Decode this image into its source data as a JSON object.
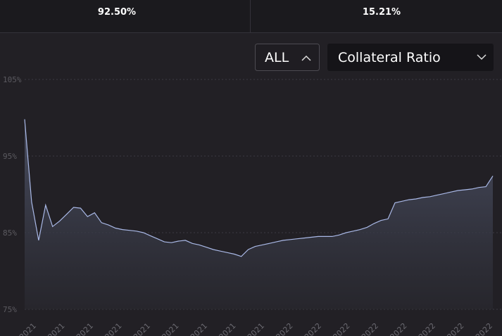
{
  "stats": [
    {
      "value": "92.50%"
    },
    {
      "value": "15.21%"
    }
  ],
  "controls": {
    "range": "ALL",
    "metric": "Collateral Ratio"
  },
  "chart_data": {
    "type": "area",
    "color": "#a9b8e6",
    "values": [
      99.8,
      89,
      84,
      88.6,
      85.8,
      86.5,
      87.4,
      88.3,
      88.2,
      87.1,
      87.6,
      86.3,
      86,
      85.6,
      85.4,
      85.3,
      85.2,
      85,
      84.6,
      84.2,
      83.8,
      83.7,
      83.9,
      84,
      83.6,
      83.4,
      83.1,
      82.8,
      82.6,
      82.4,
      82.2,
      81.9,
      82.8,
      83.2,
      83.4,
      83.6,
      83.8,
      84,
      84.1,
      84.2,
      84.3,
      84.4,
      84.5,
      84.5,
      84.5,
      84.7,
      85,
      85.2,
      85.4,
      85.7,
      86.2,
      86.6,
      86.8,
      88.9,
      89.1,
      89.3,
      89.4,
      89.6,
      89.7,
      89.9,
      90.1,
      90.3,
      90.5,
      90.6,
      90.7,
      90.9,
      91,
      92.4
    ],
    "ylim": [
      75,
      105
    ],
    "yticks": [
      {
        "value": 105,
        "label": "105%"
      },
      {
        "value": 95,
        "label": "95%"
      },
      {
        "value": 85,
        "label": "85%"
      },
      {
        "value": 75,
        "label": "75%"
      }
    ],
    "grid": true,
    "xtick_labels": [
      "2021",
      "2021",
      "2021",
      "2021",
      "2021",
      "2021",
      "2021",
      "2021",
      "2021",
      "2022",
      "2022",
      "2022",
      "2022",
      "2022",
      "2022",
      "2022",
      "2022"
    ]
  }
}
